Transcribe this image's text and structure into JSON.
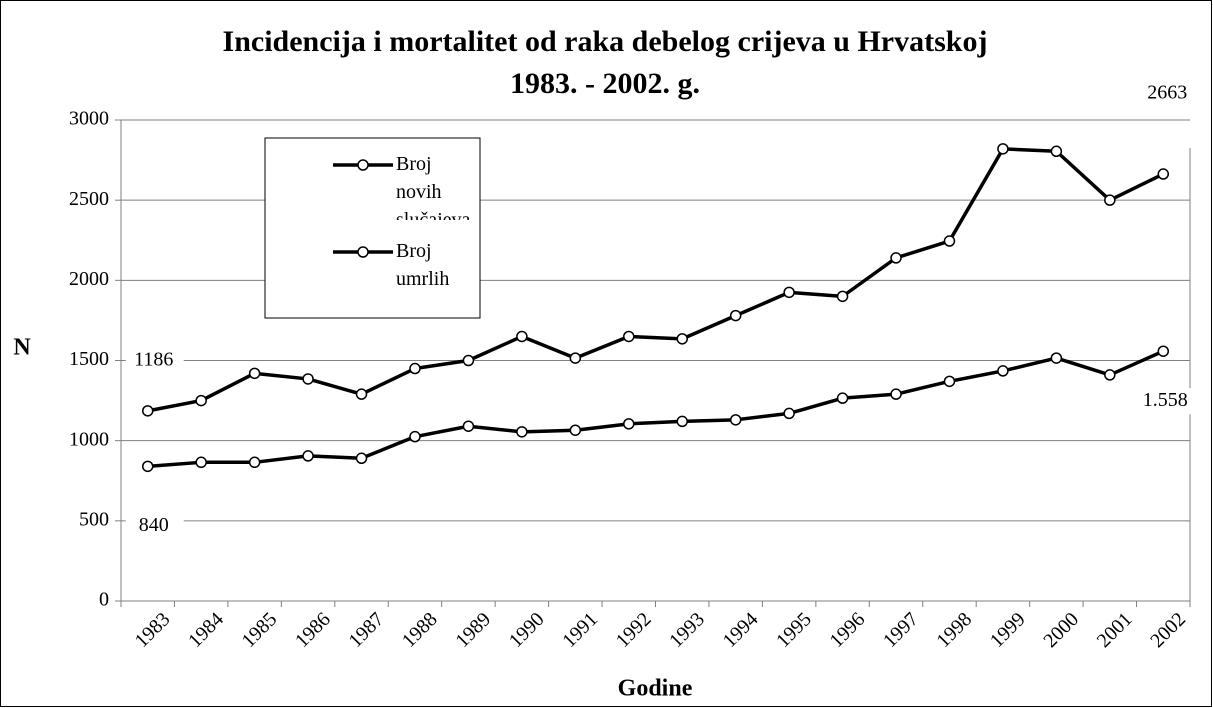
{
  "chart_data": {
    "type": "line",
    "title": "Incidencija i mortalitet od raka debelog crijeva u Hrvatskoj",
    "subtitle": "1983. - 2002. g.",
    "x_label": "Godine",
    "y_label": "N",
    "categories": [
      "1983",
      "1984",
      "1985",
      "1986",
      "1987",
      "1988",
      "1989",
      "1990",
      "1991",
      "1992",
      "1993",
      "1994",
      "1995",
      "1996",
      "1997",
      "1998",
      "1999",
      "2000",
      "2001",
      "2002"
    ],
    "series": [
      {
        "name": "Broj novih slučajeva",
        "color": "#000000",
        "values": [
          1186,
          1250,
          1420,
          1385,
          1290,
          1450,
          1500,
          1650,
          1515,
          1650,
          1635,
          1780,
          1925,
          1900,
          2140,
          2245,
          2820,
          2805,
          2500,
          2663
        ],
        "value_labels": [
          "1186",
          null,
          null,
          null,
          null,
          null,
          null,
          null,
          null,
          null,
          null,
          null,
          null,
          null,
          null,
          null,
          null,
          null,
          null,
          "2663"
        ]
      },
      {
        "name": "Broj umrlih",
        "color": "#000000",
        "values": [
          840,
          865,
          865,
          905,
          890,
          1025,
          1090,
          1055,
          1065,
          1105,
          1120,
          1130,
          1170,
          1265,
          1290,
          1370,
          1435,
          1515,
          1410,
          1558
        ],
        "value_labels": [
          "840",
          null,
          null,
          null,
          null,
          null,
          null,
          null,
          null,
          null,
          null,
          null,
          null,
          null,
          null,
          null,
          null,
          null,
          null,
          "1.558"
        ]
      }
    ],
    "ylim": [
      0,
      3000
    ],
    "yticks": [
      0,
      500,
      1000,
      1500,
      2000,
      2500,
      3000
    ],
    "grid": true
  }
}
